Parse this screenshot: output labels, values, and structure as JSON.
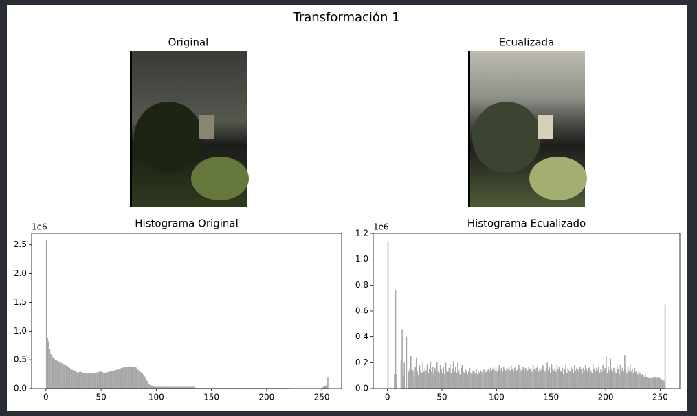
{
  "title": "Transformación 1",
  "images": [
    {
      "title": "Original"
    },
    {
      "title": "Ecualizada"
    }
  ],
  "chart_data": [
    {
      "type": "histogram",
      "title": "Histograma Original",
      "y_scale_label": "1e6",
      "color": "#a6a6a6",
      "xlim": [
        -13,
        268
      ],
      "xticks": [
        0,
        50,
        100,
        150,
        200,
        250
      ],
      "ylim": [
        0,
        2.7
      ],
      "yticks": [
        {
          "value": 0,
          "label": "0.0"
        },
        {
          "value": 0.5,
          "label": "0.5"
        },
        {
          "value": 1,
          "label": "1.0"
        },
        {
          "value": 1.5,
          "label": "1.5"
        },
        {
          "value": 2,
          "label": "2.0"
        },
        {
          "value": 2.5,
          "label": "2.5"
        }
      ],
      "bins": [
        0,
        1,
        2,
        3,
        4,
        5,
        6,
        7,
        8,
        9,
        10,
        11,
        12,
        13,
        14,
        15,
        16,
        17,
        18,
        19,
        20,
        21,
        22,
        23,
        24,
        25,
        26,
        27,
        28,
        29,
        30,
        31,
        32,
        33,
        34,
        35,
        36,
        37,
        38,
        39,
        40,
        41,
        42,
        43,
        44,
        45,
        46,
        47,
        48,
        49,
        50,
        51,
        52,
        53,
        54,
        55,
        56,
        57,
        58,
        59,
        60,
        61,
        62,
        63,
        64,
        65,
        66,
        67,
        68,
        69,
        70,
        71,
        72,
        73,
        74,
        75,
        76,
        77,
        78,
        79,
        80,
        81,
        82,
        83,
        84,
        85,
        86,
        87,
        88,
        89,
        90,
        91,
        92,
        93,
        94,
        95,
        96,
        97,
        98,
        99,
        100,
        101,
        102,
        103,
        104,
        105,
        106,
        107,
        108,
        109,
        110,
        111,
        112,
        113,
        114,
        115,
        116,
        117,
        118,
        119,
        120,
        121,
        122,
        123,
        124,
        125,
        126,
        127,
        128,
        129,
        130,
        131,
        132,
        133,
        134,
        135,
        136,
        137,
        138,
        139,
        140,
        141,
        142,
        143,
        144,
        145,
        146,
        147,
        148,
        149,
        150,
        151,
        152,
        153,
        154,
        155,
        156,
        157,
        158,
        159,
        160,
        161,
        162,
        163,
        164,
        165,
        166,
        167,
        168,
        169,
        170,
        171,
        172,
        173,
        174,
        175,
        176,
        177,
        178,
        179,
        180,
        181,
        182,
        183,
        184,
        185,
        186,
        187,
        188,
        189,
        190,
        191,
        192,
        193,
        194,
        195,
        196,
        197,
        198,
        199,
        200,
        201,
        202,
        203,
        204,
        205,
        206,
        207,
        208,
        209,
        210,
        211,
        212,
        213,
        214,
        215,
        216,
        217,
        218,
        219,
        220,
        221,
        222,
        223,
        224,
        225,
        226,
        227,
        228,
        229,
        230,
        231,
        232,
        233,
        234,
        235,
        236,
        237,
        238,
        239,
        240,
        241,
        242,
        243,
        244,
        245,
        246,
        247,
        248,
        249,
        250,
        251,
        252,
        253,
        254,
        255,
        256
      ],
      "values": [
        2.58,
        0.88,
        0.82,
        0.68,
        0.6,
        0.56,
        0.54,
        0.52,
        0.5,
        0.49,
        0.48,
        0.47,
        0.46,
        0.45,
        0.44,
        0.43,
        0.42,
        0.41,
        0.4,
        0.39,
        0.37,
        0.36,
        0.34,
        0.33,
        0.32,
        0.31,
        0.3,
        0.29,
        0.28,
        0.28,
        0.29,
        0.29,
        0.28,
        0.27,
        0.27,
        0.26,
        0.27,
        0.27,
        0.27,
        0.26,
        0.26,
        0.27,
        0.27,
        0.27,
        0.27,
        0.28,
        0.28,
        0.29,
        0.29,
        0.3,
        0.29,
        0.28,
        0.27,
        0.27,
        0.28,
        0.28,
        0.29,
        0.29,
        0.3,
        0.3,
        0.31,
        0.31,
        0.32,
        0.32,
        0.33,
        0.33,
        0.34,
        0.35,
        0.36,
        0.36,
        0.37,
        0.37,
        0.38,
        0.38,
        0.38,
        0.39,
        0.38,
        0.37,
        0.37,
        0.38,
        0.38,
        0.37,
        0.35,
        0.33,
        0.3,
        0.29,
        0.28,
        0.26,
        0.24,
        0.21,
        0.18,
        0.14,
        0.11,
        0.08,
        0.06,
        0.05,
        0.04,
        0.04,
        0.03,
        0.03,
        0.03,
        0.03,
        0.03,
        0.03,
        0.03,
        0.03,
        0.03,
        0.03,
        0.03,
        0.03,
        0.03,
        0.03,
        0.03,
        0.03,
        0.03,
        0.03,
        0.03,
        0.03,
        0.03,
        0.03,
        0.03,
        0.03,
        0.03,
        0.03,
        0.03,
        0.03,
        0.03,
        0.03,
        0.03,
        0.03,
        0.03,
        0.03,
        0.03,
        0.03,
        0.03,
        0.01,
        0.01,
        0.01,
        0.01,
        0.01,
        0.01,
        0.01,
        0.01,
        0.01,
        0.01,
        0.01,
        0.01,
        0.01,
        0.01,
        0.01,
        0.01,
        0.01,
        0.01,
        0.01,
        0.01,
        0.01,
        0.01,
        0.01,
        0.01,
        0.01,
        0.01,
        0.01,
        0.01,
        0.01,
        0.01,
        0.01,
        0.01,
        0.01,
        0.01,
        0.01,
        0.01,
        0.01,
        0.01,
        0.01,
        0.01,
        0.01,
        0.01,
        0.01,
        0.01,
        0.01,
        0.01,
        0.01,
        0.01,
        0.01,
        0.01,
        0.01,
        0.01,
        0.01,
        0.01,
        0.01,
        0.01,
        0.01,
        0.01,
        0.01,
        0.01,
        0.01,
        0.01,
        0.01,
        0.01,
        0.01,
        0.01,
        0.01,
        0.01,
        0.01,
        0.01,
        0.01,
        0.01,
        0.01,
        0.01,
        0.01,
        0.01,
        0.01,
        0.01,
        0.01,
        0.01,
        0.01,
        0.01,
        0.01,
        0.01,
        0.01,
        0.005,
        0.005,
        0.005,
        0.005,
        0.005,
        0.005,
        0.005,
        0.005,
        0.005,
        0.005,
        0.005,
        0.005,
        0.005,
        0.005,
        0.005,
        0.005,
        0.005,
        0.005,
        0.005,
        0.005,
        0.005,
        0.005,
        0.005,
        0.005,
        0.005,
        0.005,
        0.005,
        0.005,
        0.005,
        0.005,
        0.02,
        0.03,
        0.04,
        0.05,
        0.06,
        0.2
      ]
    },
    {
      "type": "histogram",
      "title": "Histograma Ecualizado",
      "y_scale_label": "1e6",
      "color": "#a6a6a6",
      "xlim": [
        -13,
        268
      ],
      "xticks": [
        0,
        50,
        100,
        150,
        200,
        250
      ],
      "ylim": [
        0,
        1.2
      ],
      "yticks": [
        {
          "value": 0,
          "label": "0.0"
        },
        {
          "value": 0.2,
          "label": "0.2"
        },
        {
          "value": 0.4,
          "label": "0.4"
        },
        {
          "value": 0.6,
          "label": "0.6"
        },
        {
          "value": 0.8,
          "label": "0.8"
        },
        {
          "value": 1,
          "label": "1.0"
        },
        {
          "value": 1.2,
          "label": "1.2"
        }
      ],
      "bins": [
        0,
        1,
        2,
        3,
        4,
        5,
        6,
        7,
        8,
        9,
        10,
        11,
        12,
        13,
        14,
        15,
        16,
        17,
        18,
        19,
        20,
        21,
        22,
        23,
        24,
        25,
        26,
        27,
        28,
        29,
        30,
        31,
        32,
        33,
        34,
        35,
        36,
        37,
        38,
        39,
        40,
        41,
        42,
        43,
        44,
        45,
        46,
        47,
        48,
        49,
        50,
        51,
        52,
        53,
        54,
        55,
        56,
        57,
        58,
        59,
        60,
        61,
        62,
        63,
        64,
        65,
        66,
        67,
        68,
        69,
        70,
        71,
        72,
        73,
        74,
        75,
        76,
        77,
        78,
        79,
        80,
        81,
        82,
        83,
        84,
        85,
        86,
        87,
        88,
        89,
        90,
        91,
        92,
        93,
        94,
        95,
        96,
        97,
        98,
        99,
        100,
        101,
        102,
        103,
        104,
        105,
        106,
        107,
        108,
        109,
        110,
        111,
        112,
        113,
        114,
        115,
        116,
        117,
        118,
        119,
        120,
        121,
        122,
        123,
        124,
        125,
        126,
        127,
        128,
        129,
        130,
        131,
        132,
        133,
        134,
        135,
        136,
        137,
        138,
        139,
        140,
        141,
        142,
        143,
        144,
        145,
        146,
        147,
        148,
        149,
        150,
        151,
        152,
        153,
        154,
        155,
        156,
        157,
        158,
        159,
        160,
        161,
        162,
        163,
        164,
        165,
        166,
        167,
        168,
        169,
        170,
        171,
        172,
        173,
        174,
        175,
        176,
        177,
        178,
        179,
        180,
        181,
        182,
        183,
        184,
        185,
        186,
        187,
        188,
        189,
        190,
        191,
        192,
        193,
        194,
        195,
        196,
        197,
        198,
        199,
        200,
        201,
        202,
        203,
        204,
        205,
        206,
        207,
        208,
        209,
        210,
        211,
        212,
        213,
        214,
        215,
        216,
        217,
        218,
        219,
        220,
        221,
        222,
        223,
        224,
        225,
        226,
        227,
        228,
        229,
        230,
        231,
        232,
        233,
        234,
        235,
        236,
        237,
        238,
        239,
        240,
        241,
        242,
        243,
        244,
        245,
        246,
        247,
        248,
        249,
        250,
        251,
        252,
        253,
        254,
        255,
        256
      ],
      "values": [
        1.14,
        0,
        0,
        0,
        0,
        0,
        0.11,
        0.76,
        0.11,
        0,
        0,
        0,
        0.22,
        0.46,
        0.1,
        0.2,
        0,
        0.4,
        0,
        0.13,
        0.15,
        0.25,
        0.15,
        0.14,
        0.09,
        0.17,
        0.24,
        0.13,
        0.1,
        0.18,
        0.14,
        0.12,
        0.2,
        0.13,
        0.16,
        0.14,
        0.19,
        0.12,
        0.15,
        0.21,
        0.13,
        0.17,
        0.11,
        0.16,
        0.14,
        0.2,
        0.13,
        0.12,
        0.18,
        0.15,
        0.12,
        0.17,
        0.11,
        0.2,
        0.14,
        0.13,
        0.16,
        0.19,
        0.12,
        0.15,
        0.21,
        0.13,
        0.17,
        0.12,
        0.2,
        0.14,
        0.11,
        0.16,
        0.18,
        0.13,
        0.12,
        0.15,
        0.14,
        0.11,
        0.13,
        0.16,
        0.12,
        0.11,
        0.14,
        0.13,
        0.12,
        0.15,
        0.11,
        0.13,
        0.12,
        0.14,
        0.13,
        0.11,
        0.15,
        0.12,
        0.13,
        0.14,
        0.15,
        0.13,
        0.16,
        0.14,
        0.15,
        0.17,
        0.14,
        0.16,
        0.13,
        0.15,
        0.18,
        0.14,
        0.16,
        0.13,
        0.17,
        0.15,
        0.14,
        0.16,
        0.15,
        0.17,
        0.14,
        0.18,
        0.15,
        0.13,
        0.16,
        0.17,
        0.14,
        0.15,
        0.18,
        0.16,
        0.14,
        0.15,
        0.17,
        0.13,
        0.16,
        0.15,
        0.14,
        0.17,
        0.15,
        0.16,
        0.13,
        0.18,
        0.15,
        0.14,
        0.16,
        0.17,
        0.13,
        0.15,
        0.14,
        0.16,
        0.18,
        0.15,
        0.13,
        0.16,
        0.2,
        0.14,
        0.17,
        0.12,
        0.19,
        0.15,
        0.14,
        0.16,
        0.13,
        0.18,
        0.15,
        0.17,
        0.14,
        0.13,
        0.16,
        0.11,
        0.15,
        0.19,
        0.12,
        0.16,
        0.14,
        0.13,
        0.17,
        0.15,
        0.12,
        0.18,
        0.14,
        0.16,
        0.15,
        0.13,
        0.17,
        0.15,
        0.12,
        0.16,
        0.14,
        0.18,
        0.15,
        0.13,
        0.16,
        0.17,
        0.14,
        0.12,
        0.19,
        0.15,
        0.13,
        0.16,
        0.14,
        0.17,
        0.12,
        0.15,
        0.13,
        0.18,
        0.14,
        0.16,
        0.25,
        0.12,
        0.17,
        0.14,
        0.23,
        0.15,
        0.13,
        0.16,
        0.14,
        0.12,
        0.17,
        0.15,
        0.11,
        0.18,
        0.14,
        0.16,
        0.13,
        0.26,
        0.15,
        0.12,
        0.17,
        0.14,
        0.19,
        0.13,
        0.15,
        0.12,
        0.16,
        0.13,
        0.14,
        0.11,
        0.13,
        0.12,
        0.1,
        0.11,
        0.1,
        0.09,
        0.1,
        0.09,
        0.09,
        0.08,
        0.09,
        0.08,
        0.08,
        0.09,
        0.08,
        0.09,
        0.08,
        0.09,
        0.09,
        0.08,
        0.08,
        0.07,
        0.07,
        0.06,
        0.65,
        0
      ]
    }
  ]
}
